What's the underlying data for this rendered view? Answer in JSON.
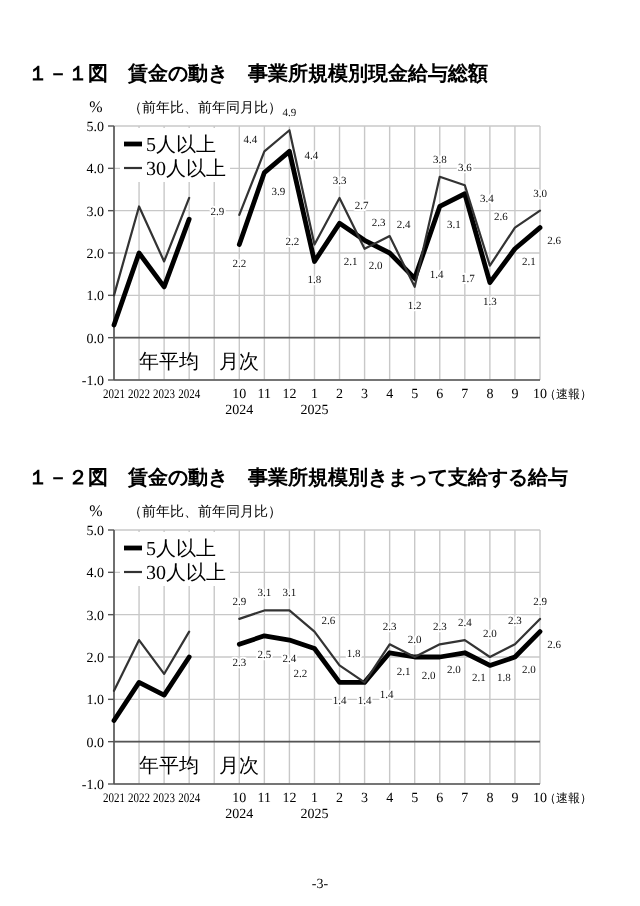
{
  "chart_data": [
    {
      "type": "line",
      "title": "１－１図　賃金の動き　事業所規模別現金給与総額",
      "subtitle": "（前年比、前年同月比）",
      "ylabel": "%",
      "categories": [
        "2021",
        "2022",
        "2023",
        "2024",
        null,
        "10\n2024",
        "11",
        "12",
        "1\n2025",
        "2",
        "3",
        "4",
        "5",
        "6",
        "7",
        "8",
        "9",
        "10"
      ],
      "series": [
        {
          "name": "5人以上",
          "color": "#000000",
          "values": [
            0.3,
            2.0,
            1.2,
            2.8,
            null,
            2.2,
            3.9,
            4.4,
            1.8,
            2.7,
            2.3,
            2.0,
            1.4,
            3.1,
            3.4,
            1.3,
            2.1,
            2.6
          ],
          "value_labels": [
            null,
            null,
            null,
            null,
            null,
            "2.2",
            "3.9",
            "4.4",
            "1.8",
            "2.7",
            "2.3",
            "2.0",
            "1.4",
            "3.1",
            "3.4",
            "1.3",
            "2.1",
            "2.6"
          ]
        },
        {
          "name": "30人以上",
          "color": "#333333",
          "values": [
            1.0,
            3.1,
            1.8,
            3.3,
            null,
            2.9,
            4.4,
            4.9,
            2.2,
            3.3,
            2.1,
            2.4,
            1.2,
            3.8,
            3.6,
            1.7,
            2.6,
            3.0
          ],
          "value_labels": [
            null,
            null,
            null,
            null,
            null,
            "2.9",
            "4.4",
            "4.9",
            "2.2",
            "3.3",
            "2.1",
            "2.4",
            "1.2",
            "3.8",
            "3.6",
            "1.7",
            "2.6",
            "3.0"
          ]
        }
      ],
      "ylim": [
        -1,
        5
      ],
      "yticks": [
        {
          "value": -1,
          "label": "-1.0"
        },
        {
          "value": 0,
          "label": "0.0"
        },
        {
          "value": 1,
          "label": "1.0"
        },
        {
          "value": 2,
          "label": "2.0"
        },
        {
          "value": 3,
          "label": "3.0"
        },
        {
          "value": 4,
          "label": "4.0"
        },
        {
          "value": 5,
          "label": "5.0"
        }
      ],
      "grid": true,
      "legend": "top left",
      "marker": "none",
      "line_style": "solid",
      "annotations": [
        "年平均",
        "月次",
        "（速報）"
      ]
    },
    {
      "type": "line",
      "title": "１－２図　賃金の動き　事業所規模別きまって支給する給与",
      "subtitle": "（前年比、前年同月比）",
      "ylabel": "%",
      "categories": [
        "2021",
        "2022",
        "2023",
        "2024",
        null,
        "10\n2024",
        "11",
        "12",
        "1\n2025",
        "2",
        "3",
        "4",
        "5",
        "6",
        "7",
        "8",
        "9",
        "10"
      ],
      "series": [
        {
          "name": "5人以上",
          "color": "#000000",
          "values": [
            0.5,
            1.4,
            1.1,
            2.0,
            null,
            2.3,
            2.5,
            2.4,
            2.2,
            1.4,
            1.4,
            2.1,
            2.0,
            2.0,
            2.1,
            1.8,
            2.0,
            2.6
          ],
          "value_labels": [
            null,
            null,
            null,
            null,
            null,
            "2.3",
            "2.5",
            "2.4",
            "2.2",
            "1.4",
            "1.4",
            "2.1",
            "2.0",
            "2.0",
            "2.1",
            "1.8",
            "2.0",
            "2.6"
          ]
        },
        {
          "name": "30人以上",
          "color": "#333333",
          "values": [
            1.2,
            2.4,
            1.6,
            2.6,
            null,
            2.9,
            3.1,
            3.1,
            2.6,
            1.8,
            1.4,
            2.3,
            2.0,
            2.3,
            2.4,
            2.0,
            2.3,
            2.9
          ],
          "value_labels": [
            null,
            null,
            null,
            null,
            null,
            "2.9",
            "3.1",
            "3.1",
            "2.6",
            "1.8",
            "1.4",
            "2.3",
            "2.0",
            "2.3",
            "2.4",
            "2.0",
            "2.3",
            "2.9"
          ]
        }
      ],
      "ylim": [
        -1,
        5
      ],
      "yticks": [
        {
          "value": -1,
          "label": "-1.0"
        },
        {
          "value": 0,
          "label": "0.0"
        },
        {
          "value": 1,
          "label": "1.0"
        },
        {
          "value": 2,
          "label": "2.0"
        },
        {
          "value": 3,
          "label": "3.0"
        },
        {
          "value": 4,
          "label": "4.0"
        },
        {
          "value": 5,
          "label": "5.0"
        }
      ],
      "grid": true,
      "legend": "top left",
      "marker": "none",
      "line_style": "solid",
      "annotations": [
        "年平均",
        "月次",
        "（速報）",
        "-3-"
      ]
    }
  ]
}
